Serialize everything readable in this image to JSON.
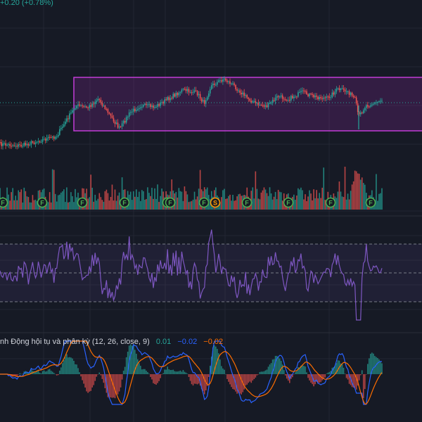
{
  "header": {
    "price_change": "+0.20 (+0.78%)"
  },
  "colors": {
    "background": "#161a25",
    "up": "#26a69a",
    "down": "#ef5350",
    "rectangle": "#9c27b0",
    "rsi_line": "#7e57c2",
    "macd_line": "#2962ff",
    "signal_line": "#ff6d00",
    "event_badge": "#4caf50",
    "split_badge": "#ff9800"
  },
  "chart_data": [
    {
      "type": "candlestick",
      "pane": "price",
      "series": [
        {
          "name": "",
          "values": []
        }
      ],
      "grid": true,
      "notes": []
    },
    {
      "type": "bar",
      "pane": "volume",
      "series": [
        {
          "name": "",
          "values": []
        }
      ],
      "events": [
        {
          "label": "F"
        },
        {
          "label": "F"
        },
        {
          "label": "F"
        },
        {
          "label": "F"
        },
        {
          "label": "F"
        },
        {
          "label": "F"
        },
        {
          "label": "F"
        },
        {
          "label": "S"
        },
        {
          "label": "F"
        },
        {
          "label": "F"
        },
        {
          "label": "F"
        },
        {
          "label": "F"
        }
      ]
    },
    {
      "type": "line",
      "pane": "rsi",
      "series": [
        {
          "name": "",
          "values": []
        }
      ]
    },
    {
      "type": "line",
      "pane": "macd",
      "title": "nh Động hội tụ và phân kỳ (12, 26, close, 9)",
      "legend_values": {
        "histogram": "0.01",
        "macd": "−0.02",
        "signal": "−0.02"
      },
      "series": [
        {
          "name": "",
          "values": []
        },
        {
          "name": "",
          "values": []
        },
        {
          "name": "",
          "values": []
        }
      ]
    }
  ]
}
